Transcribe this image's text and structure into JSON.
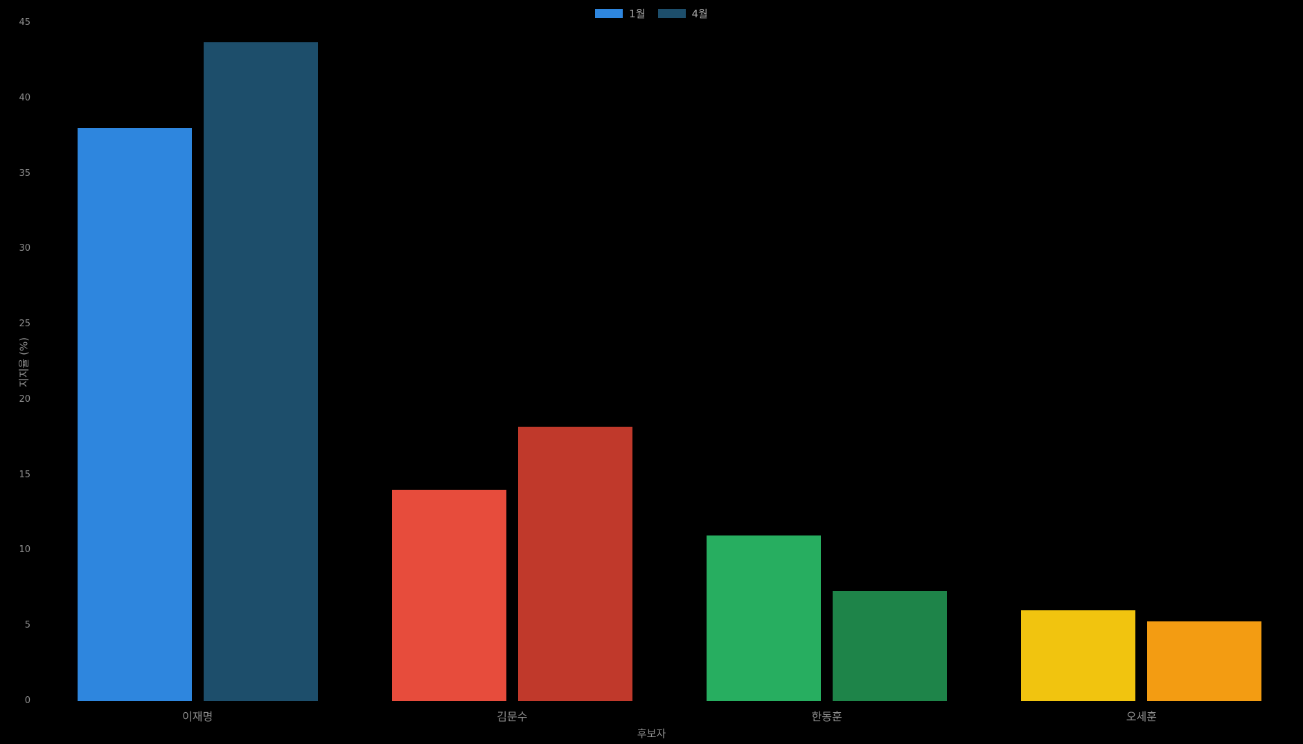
{
  "figure": {
    "background_color": "#000000",
    "text_color": "#8f8f8f"
  },
  "legend": {
    "items": [
      {
        "label": "1월",
        "color": "#2e86de"
      },
      {
        "label": "4월",
        "color": "#1d4e6b"
      }
    ]
  },
  "chart_data": {
    "type": "bar",
    "title": "",
    "xlabel": "후보자",
    "ylabel": "지지율 (%)",
    "categories": [
      "이재명",
      "김문수",
      "한동훈",
      "오세훈"
    ],
    "series": [
      {
        "name": "1월",
        "values": [
          38.0,
          14.0,
          11.0,
          6.0
        ],
        "colors": [
          "#2e86de",
          "#e74c3c",
          "#27ae60",
          "#f1c40f"
        ]
      },
      {
        "name": "4월",
        "values": [
          43.7,
          18.2,
          7.3,
          5.3
        ],
        "colors": [
          "#1d4e6b",
          "#c0392b",
          "#1e8449",
          "#f39c12"
        ]
      }
    ],
    "ylim": [
      0,
      45
    ],
    "yticks": [
      0,
      5,
      10,
      15,
      20,
      25,
      30,
      35,
      40,
      45
    ],
    "grid": false,
    "legend_position": "top-center",
    "background": "#000000"
  }
}
